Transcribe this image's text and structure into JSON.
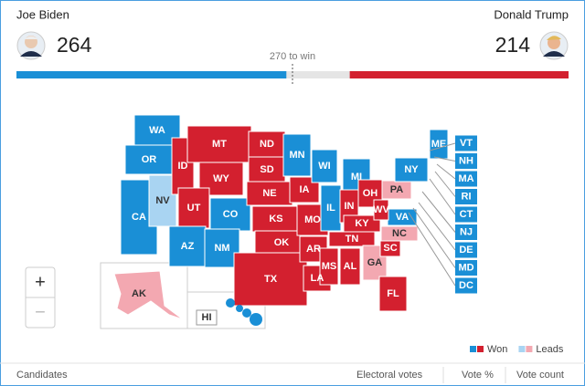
{
  "candidates": [
    {
      "name": "Joe Biden",
      "votes": 264,
      "color": "#1a8fd6"
    },
    {
      "name": "Donald Trump",
      "votes": 214,
      "color": "#d3202f"
    }
  ],
  "threshold": {
    "value": 270,
    "label": "270 to win"
  },
  "states": [
    {
      "label": "WA",
      "color": "#1a8fd6"
    },
    {
      "label": "OR",
      "color": "#1a8fd6"
    },
    {
      "label": "CA",
      "color": "#1a8fd6"
    },
    {
      "label": "NV",
      "color": "#a9d4f2"
    },
    {
      "label": "ID",
      "color": "#d3202f"
    },
    {
      "label": "MT",
      "color": "#d3202f"
    },
    {
      "label": "WY",
      "color": "#d3202f"
    },
    {
      "label": "UT",
      "color": "#d3202f"
    },
    {
      "label": "CO",
      "color": "#1a8fd6"
    },
    {
      "label": "AZ",
      "color": "#1a8fd6"
    },
    {
      "label": "NM",
      "color": "#1a8fd6"
    },
    {
      "label": "ND",
      "color": "#d3202f"
    },
    {
      "label": "SD",
      "color": "#d3202f"
    },
    {
      "label": "NE",
      "color": "#d3202f"
    },
    {
      "label": "KS",
      "color": "#d3202f"
    },
    {
      "label": "OK",
      "color": "#d3202f"
    },
    {
      "label": "TX",
      "color": "#d3202f"
    },
    {
      "label": "MN",
      "color": "#1a8fd6"
    },
    {
      "label": "IA",
      "color": "#d3202f"
    },
    {
      "label": "MO",
      "color": "#d3202f"
    },
    {
      "label": "AR",
      "color": "#d3202f"
    },
    {
      "label": "LA",
      "color": "#d3202f"
    },
    {
      "label": "WI",
      "color": "#1a8fd6"
    },
    {
      "label": "IL",
      "color": "#1a8fd6"
    },
    {
      "label": "MI",
      "color": "#1a8fd6"
    },
    {
      "label": "IN",
      "color": "#d3202f"
    },
    {
      "label": "OH",
      "color": "#d3202f"
    },
    {
      "label": "KY",
      "color": "#d3202f"
    },
    {
      "label": "TN",
      "color": "#d3202f"
    },
    {
      "label": "MS",
      "color": "#d3202f"
    },
    {
      "label": "AL",
      "color": "#d3202f"
    },
    {
      "label": "GA",
      "color": "#f3a8b1"
    },
    {
      "label": "FL",
      "color": "#d3202f"
    },
    {
      "label": "SC",
      "color": "#d3202f"
    },
    {
      "label": "NC",
      "color": "#f3a8b1"
    },
    {
      "label": "VA",
      "color": "#1a8fd6"
    },
    {
      "label": "WV",
      "color": "#d3202f"
    },
    {
      "label": "PA",
      "color": "#f3a8b1"
    },
    {
      "label": "NY",
      "color": "#1a8fd6"
    },
    {
      "label": "ME",
      "color": "#1a8fd6"
    },
    {
      "label": "AK",
      "color": "#f3a8b1"
    },
    {
      "label": "HI",
      "color": "#1a8fd6"
    }
  ],
  "small_states": [
    {
      "label": "VT",
      "color": "#1a8fd6"
    },
    {
      "label": "NH",
      "color": "#1a8fd6"
    },
    {
      "label": "MA",
      "color": "#1a8fd6"
    },
    {
      "label": "RI",
      "color": "#1a8fd6"
    },
    {
      "label": "CT",
      "color": "#1a8fd6"
    },
    {
      "label": "NJ",
      "color": "#1a8fd6"
    },
    {
      "label": "DE",
      "color": "#1a8fd6"
    },
    {
      "label": "MD",
      "color": "#1a8fd6"
    },
    {
      "label": "DC",
      "color": "#1a8fd6"
    }
  ],
  "zoom": {
    "in": "+",
    "out": "−"
  },
  "legend": [
    {
      "label": "Won",
      "colors": [
        "#1a8fd6",
        "#d3202f"
      ]
    },
    {
      "label": "Leads",
      "colors": [
        "#a9d4f2",
        "#f3a8b1"
      ]
    }
  ],
  "footer": [
    "Candidates",
    "Electoral votes",
    "Vote %",
    "Vote count"
  ]
}
